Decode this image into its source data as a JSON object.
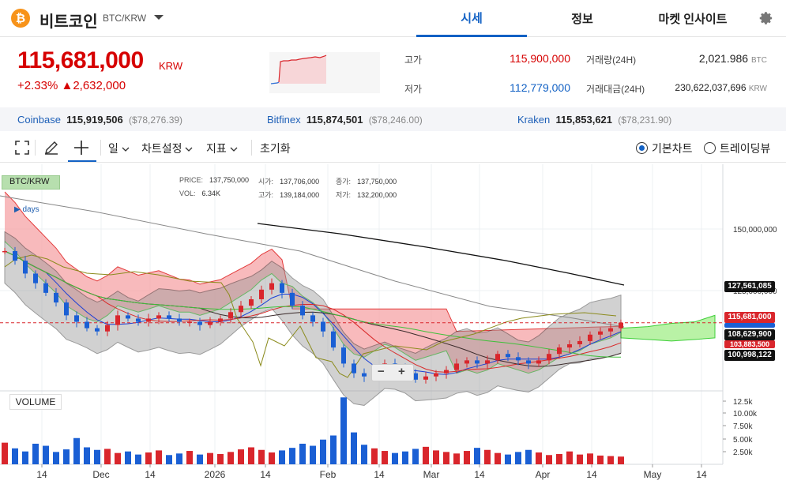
{
  "header": {
    "coin_icon": "bitcoin-icon",
    "coin_symbol": "₿",
    "coin_name": "비트코인",
    "pair": "BTC/KRW",
    "tabs": [
      {
        "label": "시세",
        "active": true
      },
      {
        "label": "정보",
        "active": false
      },
      {
        "label": "마켓 인사이트",
        "active": false
      }
    ]
  },
  "summary": {
    "price": "115,681,000",
    "unit": "KRW",
    "change_pct": "+2.33%",
    "change_abs": "▲2,632,000",
    "high_label": "고가",
    "high_value": "115,900,000",
    "low_label": "저가",
    "low_value": "112,779,000",
    "volume_label": "거래량(24H)",
    "volume_value": "2,021.986",
    "volume_unit": "BTC",
    "amount_label": "거래대금(24H)",
    "amount_value": "230,622,037,696",
    "amount_unit": "KRW"
  },
  "exchanges": [
    {
      "name": "Coinbase",
      "price": "115,919,506",
      "usd": "($78,276.39)"
    },
    {
      "name": "Bitfinex",
      "price": "115,874,501",
      "usd": "($78,246.00)"
    },
    {
      "name": "Kraken",
      "price": "115,853,621",
      "usd": "($78,231.90)"
    }
  ],
  "toolbar": {
    "interval": "일",
    "settings": "차트설정",
    "indicators": "지표",
    "reset": "초기화",
    "basic_chart": "기본차트",
    "tradingview": "트레이딩뷰"
  },
  "chart_info": {
    "symbol": "BTC/KRW",
    "days": "days",
    "price_label": "PRICE:",
    "price_value": "137,750,000",
    "vol_label": "VOL:",
    "vol_value": "6.34K",
    "open_label": "시가:",
    "open_value": "137,706,000",
    "high_label": "고가:",
    "high_value": "139,184,000",
    "close_label": "종가:",
    "close_value": "137,750,000",
    "low_label": "저가:",
    "low_value": "132,200,000",
    "volume_title": "VOLUME",
    "zoom_out": "−",
    "zoom_in": "+"
  },
  "chart_data": {
    "type": "line",
    "title": "",
    "y_ticks": [
      "150,000,000",
      "125,000,000"
    ],
    "x_ticks": [
      "14",
      "Dec",
      "14",
      "2026",
      "14",
      "Feb",
      "14",
      "Mar",
      "14",
      "Apr",
      "14",
      "May",
      "14"
    ],
    "volume_ticks": [
      "12.5k",
      "10.00k",
      "7.50k",
      "5.00k",
      "2.50k"
    ],
    "price_tags": [
      {
        "value": "127,561,085",
        "color": "#111111"
      },
      {
        "value": "115,681,000",
        "color": "#d9262c"
      },
      {
        "value": "108,629,900",
        "color": "#111111"
      },
      {
        "value": "103,883,500",
        "color": "#d9262c"
      },
      {
        "value": "100,998,122",
        "color": "#111111"
      }
    ],
    "ylim": [
      95000000,
      165000000
    ],
    "close_series": [
      138,
      135,
      131,
      128,
      125,
      122,
      118,
      116,
      114,
      113,
      115,
      118,
      117,
      116,
      117,
      118,
      117,
      116,
      116,
      115,
      116,
      117,
      119,
      121,
      123,
      126,
      128,
      125,
      121,
      118,
      116,
      113,
      108,
      103,
      100,
      99,
      101,
      103,
      102,
      100,
      98,
      99,
      100,
      101,
      103,
      104,
      103,
      104,
      106,
      105,
      104,
      103,
      104,
      106,
      108,
      109,
      110,
      112,
      113,
      114,
      115.7
    ],
    "volume_series": [
      4.2,
      3.1,
      2.5,
      4.0,
      3.6,
      2.4,
      2.9,
      5.1,
      3.3,
      2.8,
      3.0,
      2.2,
      2.5,
      1.9,
      2.3,
      2.7,
      1.8,
      2.1,
      2.6,
      1.9,
      2.2,
      2.0,
      2.4,
      2.9,
      3.3,
      2.8,
      2.3,
      2.7,
      3.2,
      4.0,
      3.6,
      4.8,
      5.6,
      13.0,
      6.2,
      3.8,
      3.1,
      2.6,
      2.2,
      2.5,
      3.0,
      3.4,
      2.7,
      2.4,
      2.1,
      2.6,
      3.2,
      2.8,
      2.2,
      1.9,
      2.4,
      2.8,
      2.3,
      1.8,
      2.0,
      2.5,
      1.9,
      2.1,
      1.7,
      1.6,
      1.5
    ]
  }
}
